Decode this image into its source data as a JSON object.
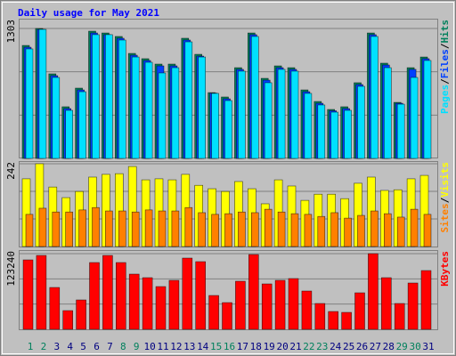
{
  "chart_data": [
    {
      "type": "bar",
      "title": "Daily usage for May 2021",
      "legend_separator": "/",
      "series": [
        {
          "name": "Hits",
          "color": "#00805c",
          "values": [
            1133,
            1303,
            848,
            518,
            705,
            1276,
            1258,
            1223,
            1053,
            1000,
            946,
            946,
            1205,
            1044,
            660,
            616,
            910,
            1258,
            803,
            928,
            910,
            687,
            571,
            491,
            518,
            759,
            1258,
            955,
            562,
            910,
            1017
          ]
        },
        {
          "name": "Files",
          "color": "#0040ff",
          "values": [
            1115,
            1294,
            830,
            500,
            687,
            1258,
            1241,
            1205,
            1035,
            982,
            928,
            928,
            1187,
            1026,
            655,
            598,
            893,
            1241,
            785,
            910,
            893,
            669,
            553,
            478,
            500,
            741,
            1241,
            937,
            553,
            893,
            1000
          ]
        },
        {
          "name": "Pages",
          "color": "#00e0ff",
          "values": [
            1098,
            1294,
            812,
            482,
            669,
            1241,
            1241,
            1187,
            1017,
            964,
            857,
            910,
            1169,
            1017,
            652,
            580,
            875,
            1223,
            759,
            893,
            875,
            652,
            536,
            464,
            482,
            723,
            1223,
            910,
            544,
            812,
            982
          ]
        }
      ],
      "ylim": [
        0,
        1303
      ],
      "yticks": [
        1303
      ]
    },
    {
      "type": "bar",
      "series": [
        {
          "name": "Visits",
          "color": "#ffff00",
          "values": [
            198,
            242,
            174,
            143,
            161,
            203,
            211,
            213,
            234,
            195,
            198,
            195,
            211,
            179,
            169,
            161,
            190,
            169,
            125,
            195,
            177,
            135,
            153,
            153,
            140,
            185,
            203,
            164,
            166,
            198,
            208
          ]
        },
        {
          "name": "Sites",
          "color": "#ff8000",
          "values": [
            94,
            112,
            101,
            101,
            107,
            114,
            104,
            104,
            101,
            107,
            104,
            104,
            114,
            99,
            94,
            96,
            101,
            99,
            109,
            101,
            96,
            94,
            88,
            99,
            83,
            91,
            104,
            96,
            86,
            109,
            94
          ]
        }
      ],
      "ylim": [
        0,
        242
      ],
      "yticks": [
        242
      ]
    },
    {
      "type": "bar",
      "categories": [
        "1",
        "2",
        "3",
        "4",
        "5",
        "6",
        "7",
        "8",
        "9",
        "10",
        "11",
        "12",
        "13",
        "14",
        "15",
        "16",
        "17",
        "18",
        "19",
        "20",
        "21",
        "22",
        "23",
        "24",
        "25",
        "26",
        "27",
        "28",
        "29",
        "30",
        "31"
      ],
      "category_colors": [
        "#00805c",
        "#00805c",
        "#000080",
        "#000080",
        "#000080",
        "#000080",
        "#000080",
        "#00805c",
        "#00805c",
        "#000080",
        "#000080",
        "#000080",
        "#000080",
        "#000080",
        "#00805c",
        "#00805c",
        "#000080",
        "#000080",
        "#000080",
        "#000080",
        "#000080",
        "#00805c",
        "#00805c",
        "#000080",
        "#000080",
        "#000080",
        "#000080",
        "#000080",
        "#00805c",
        "#00805c",
        "#000080"
      ],
      "series": [
        {
          "name": "KBytes",
          "color": "#ff0000",
          "values": [
            113100,
            120350,
            68150,
            30450,
            47850,
            108750,
            120350,
            108750,
            89900,
            84100,
            69600,
            79750,
            116000,
            110200,
            55100,
            43500,
            78300,
            121800,
            73950,
            79750,
            82650,
            62350,
            42050,
            29000,
            27550,
            59450,
            123240,
            84100,
            42050,
            75400,
            95700
          ]
        }
      ],
      "ylim": [
        0,
        123240
      ],
      "yticks": [
        123240
      ]
    }
  ]
}
